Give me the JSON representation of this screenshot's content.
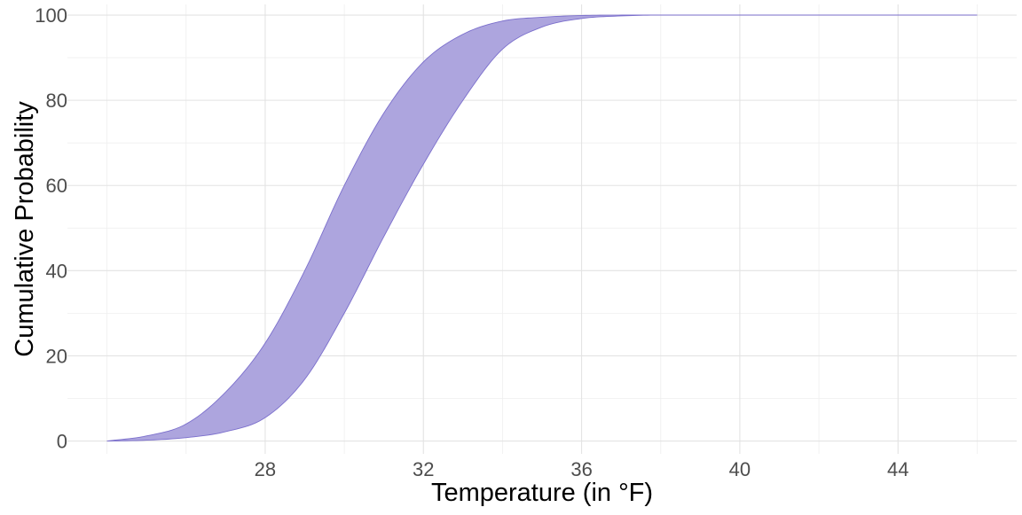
{
  "chart_data": {
    "type": "area",
    "title": "",
    "xlabel": "Temperature (in °F)",
    "ylabel": "Cumulative Probability",
    "xlim": [
      23.0,
      47.0
    ],
    "ylim": [
      -3.0,
      102.5
    ],
    "x_ticks": [
      28,
      32,
      36,
      40,
      44
    ],
    "y_ticks": [
      0,
      20,
      40,
      60,
      80,
      100
    ],
    "x_minor_ticks": [
      24,
      26,
      30,
      34,
      38,
      42,
      46
    ],
    "y_minor_ticks": [
      10,
      30,
      50,
      70,
      90
    ],
    "grid": true,
    "legend": "none",
    "fill_color": "#ADA5DE",
    "line_color": "#7B6FCC",
    "ribbon": {
      "x": [
        24,
        25,
        26,
        27,
        28,
        29,
        30,
        31,
        32,
        33,
        34,
        35,
        36,
        37,
        38,
        40,
        42,
        44,
        46
      ],
      "upper": [
        0,
        1.2,
        4,
        11.5,
        23,
        40,
        60,
        77,
        89,
        95.5,
        98.6,
        99.5,
        99.9,
        100,
        100,
        100,
        100,
        100,
        100
      ],
      "lower": [
        0,
        0.2,
        0.8,
        2.2,
        5.5,
        14.5,
        30,
        48,
        65,
        80,
        92,
        97.2,
        99.2,
        99.8,
        100,
        100,
        100,
        100,
        100
      ]
    }
  }
}
